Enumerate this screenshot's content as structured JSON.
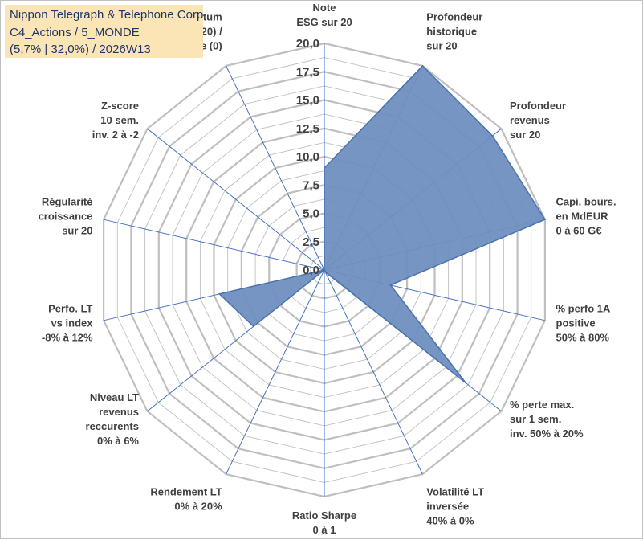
{
  "chart_data": {
    "type": "radar",
    "title_lines": [
      "Nippon Telegraph & Telephone Corp",
      "C4_Actions / 5_MONDE",
      "(5,7% | 32,0%) / 2026W13"
    ],
    "axes": [
      [
        "Note",
        "ESG sur 20"
      ],
      [
        "Profondeur",
        "historique",
        "sur 20"
      ],
      [
        "Profondeur",
        "revenus",
        "sur 20"
      ],
      [
        "Capi. bours.",
        "en MdEUR",
        "0 à 60 G€"
      ],
      [
        "% perfo 1A",
        "positive",
        "50% à 80%"
      ],
      [
        "% perte max.",
        "sur 1 sem.",
        "inv. 50% à 20%"
      ],
      [
        "Volatilité LT",
        "inversée",
        "40% à 0%"
      ],
      [
        "Ratio Sharpe",
        "0 à 1"
      ],
      [
        "Rendement LT",
        "0% à 20%"
      ],
      [
        "Niveau LT",
        "revenus",
        "reccurents",
        "0% à 6%"
      ],
      [
        "Perfo. LT",
        "vs index",
        "-8% à 12%"
      ],
      [
        "Régularité",
        "croissance",
        "sur 20"
      ],
      [
        "Z-score",
        "10 sem.",
        "inv. 2 à -2"
      ],
      [
        "Momentum",
        "Achat (20) /",
        "Vente (0)"
      ]
    ],
    "values": [
      9.0,
      20.0,
      19.0,
      20.0,
      6.0,
      16.0,
      0.2,
      0.0,
      0.0,
      8.0,
      9.5,
      0.0,
      0.0,
      0.0
    ],
    "r_ticks": [
      "0,0",
      "2,5",
      "5,0",
      "7,5",
      "10,0",
      "12,5",
      "15,0",
      "17,5",
      "20,0"
    ],
    "r_range": [
      0,
      20
    ],
    "series_color": "#6f8fbf",
    "series_line_color": "#4a72b0",
    "grid_color": "#bfbfbf",
    "spoke_color": "#4472c4"
  }
}
